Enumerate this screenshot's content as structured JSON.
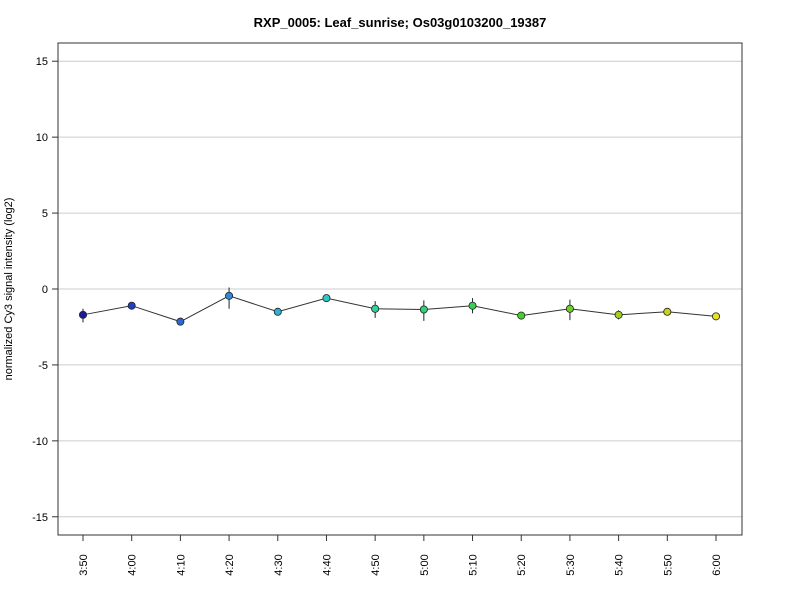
{
  "chart_data": {
    "type": "line",
    "title": "RXP_0005: Leaf_sunrise; Os03g0103200_19387",
    "xlabel": "",
    "ylabel": "normalized Cy3 signal intensity (log2)",
    "ylim": [
      -16.2,
      16.2
    ],
    "yticks": [
      -15,
      -10,
      -5,
      0,
      5,
      10,
      15
    ],
    "ytick_labels": [
      "-15",
      "-10",
      "-5",
      "0",
      "5",
      "10",
      "15"
    ],
    "grid": "horizontal",
    "categories": [
      "3:50",
      "4:00",
      "4:10",
      "4:20",
      "4:30",
      "4:40",
      "4:50",
      "5:00",
      "5:10",
      "5:20",
      "5:30",
      "5:40",
      "5:50",
      "6:00"
    ],
    "values": [
      -1.7,
      -1.1,
      -2.15,
      -0.45,
      -1.5,
      -0.6,
      -1.3,
      -1.35,
      -1.1,
      -1.75,
      -1.3,
      -1.7,
      -1.5,
      -1.8
    ],
    "error_low": [
      -2.2,
      -1.25,
      -2.2,
      -1.3,
      -1.6,
      -0.85,
      -1.9,
      -2.1,
      -1.6,
      -2.0,
      -2.05,
      -2.0,
      -1.65,
      -1.9
    ],
    "error_high": [
      -1.3,
      -1.0,
      -2.05,
      0.1,
      -1.4,
      -0.45,
      -0.8,
      -0.75,
      -0.6,
      -1.5,
      -0.7,
      -1.4,
      -1.35,
      -1.7
    ],
    "point_colors": [
      "#1a1aa0",
      "#2040c0",
      "#2b66d4",
      "#2e8ad8",
      "#2eb0d0",
      "#2ec8c0",
      "#2ed0a0",
      "#2ed07a",
      "#38d050",
      "#48d030",
      "#70d028",
      "#a0d020",
      "#c8d020",
      "#e8e020"
    ],
    "line_color": "#333333"
  }
}
